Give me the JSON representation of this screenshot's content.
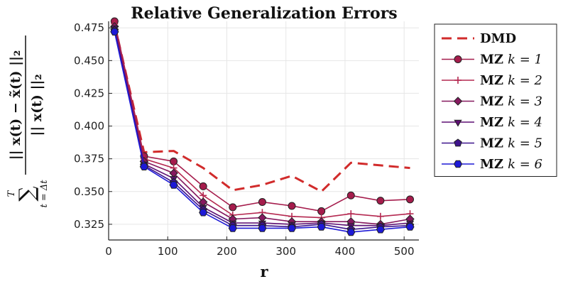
{
  "chart_data": {
    "type": "line",
    "title": "Relative Generalization Errors",
    "xlabel": "r",
    "ylabel": {
      "sum_upper": "T",
      "sum_symbol": "∑",
      "sum_lower": "t = Δt",
      "numerator": "|| x(t) − x̃(t) ||₂",
      "denominator": "|| x(t) ||₂"
    },
    "xlim": [
      0,
      525
    ],
    "ylim": [
      0.313,
      0.48
    ],
    "x_ticks": [
      0,
      100,
      200,
      300,
      400,
      500
    ],
    "y_ticks": [
      0.325,
      0.35,
      0.375,
      0.4,
      0.425,
      0.45,
      0.475
    ],
    "y_tick_labels": [
      "0.325",
      "0.350",
      "0.375",
      "0.400",
      "0.425",
      "0.450",
      "0.475"
    ],
    "grid": true,
    "legend_position": "outside-right",
    "x": [
      10,
      60,
      110,
      160,
      210,
      260,
      310,
      360,
      410,
      460,
      510
    ],
    "series": [
      {
        "name": "DMD",
        "legend_bold": "DMD",
        "legend_italic": "",
        "color": "#d12b2b",
        "style": "dashed",
        "marker": "none",
        "values": [
          0.478,
          0.38,
          0.381,
          0.368,
          0.351,
          0.355,
          0.362,
          0.35,
          0.372,
          0.37,
          0.368
        ]
      },
      {
        "name": "MZ k = 1",
        "legend_bold": "MZ",
        "legend_italic": "k = 1",
        "color": "#a51c4c",
        "style": "solid",
        "marker": "circle",
        "values": [
          0.48,
          0.377,
          0.373,
          0.354,
          0.338,
          0.342,
          0.339,
          0.335,
          0.347,
          0.343,
          0.344
        ]
      },
      {
        "name": "MZ k = 2",
        "legend_bold": "MZ",
        "legend_italic": "k = 2",
        "color": "#b42850",
        "style": "solid",
        "marker": "cross",
        "values": [
          0.478,
          0.375,
          0.368,
          0.347,
          0.332,
          0.334,
          0.331,
          0.33,
          0.333,
          0.331,
          0.333
        ]
      },
      {
        "name": "MZ k = 3",
        "legend_bold": "MZ",
        "legend_italic": "k = 3",
        "color": "#86195f",
        "style": "solid",
        "marker": "diamond",
        "values": [
          0.476,
          0.373,
          0.364,
          0.342,
          0.329,
          0.33,
          0.327,
          0.327,
          0.327,
          0.325,
          0.329
        ]
      },
      {
        "name": "MZ k = 4",
        "legend_bold": "MZ",
        "legend_italic": "k = 4",
        "color": "#5e0f73",
        "style": "solid",
        "marker": "triangle-down",
        "values": [
          0.475,
          0.371,
          0.36,
          0.338,
          0.326,
          0.326,
          0.325,
          0.326,
          0.324,
          0.324,
          0.326
        ]
      },
      {
        "name": "MZ k = 5",
        "legend_bold": "MZ",
        "legend_italic": "k = 5",
        "color": "#3d138c",
        "style": "solid",
        "marker": "pentagon",
        "values": [
          0.473,
          0.37,
          0.357,
          0.336,
          0.324,
          0.324,
          0.323,
          0.325,
          0.321,
          0.323,
          0.324
        ]
      },
      {
        "name": "MZ k = 6",
        "legend_bold": "MZ",
        "legend_italic": "k = 6",
        "color": "#1d19d6",
        "style": "solid",
        "marker": "hexagon",
        "values": [
          0.472,
          0.369,
          0.355,
          0.334,
          0.322,
          0.322,
          0.322,
          0.323,
          0.319,
          0.321,
          0.323
        ]
      }
    ]
  }
}
